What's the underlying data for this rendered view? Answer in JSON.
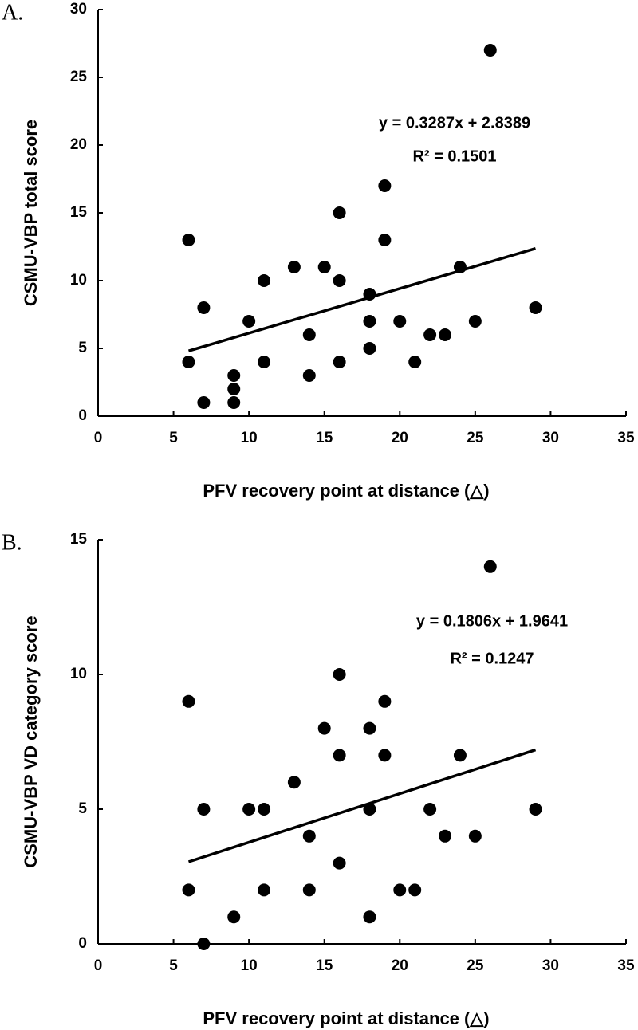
{
  "chart_data": [
    {
      "type": "scatter",
      "panel_label": "A.",
      "xlabel": "PFV  recovery  point  at  distance (△)",
      "ylabel": "CSMU-VBP total score",
      "equation": "y  =  0.3287x  +  2.8389",
      "r_squared": "R²  =  0.1501",
      "trendline": {
        "slope": 0.3287,
        "intercept": 2.8389
      },
      "color": "#000000",
      "x": [
        6,
        6,
        7,
        7,
        9,
        9,
        9,
        10,
        11,
        11,
        13,
        14,
        14,
        15,
        16,
        16,
        16,
        18,
        18,
        18,
        19,
        19,
        20,
        21,
        22,
        23,
        24,
        25,
        26,
        29
      ],
      "values": [
        13,
        4,
        8,
        1,
        3,
        2,
        1,
        7,
        10,
        4,
        11,
        6,
        3,
        11,
        15,
        10,
        4,
        9,
        7,
        5,
        17,
        13,
        7,
        4,
        6,
        6,
        11,
        7,
        27,
        8
      ],
      "xlim": [
        0,
        35
      ],
      "xticks": [
        0,
        5,
        10,
        15,
        20,
        25,
        30,
        35
      ],
      "ylim": [
        0,
        30
      ],
      "yticks": [
        0,
        5,
        10,
        15,
        20,
        25,
        30
      ]
    },
    {
      "type": "scatter",
      "panel_label": "B.",
      "xlabel": "PFV  recovery  point  at  distance (△)",
      "ylabel": "CSMU-VBP VD category score",
      "equation": "y  =  0.1806x  +  1.9641",
      "r_squared": "R²  =  0.1247",
      "trendline": {
        "slope": 0.1806,
        "intercept": 1.9641
      },
      "color": "#000000",
      "x": [
        6,
        6,
        7,
        7,
        9,
        10,
        11,
        11,
        13,
        14,
        14,
        15,
        16,
        16,
        16,
        18,
        18,
        18,
        19,
        19,
        20,
        21,
        22,
        23,
        24,
        25,
        26,
        29
      ],
      "values": [
        9,
        2,
        5,
        0,
        1,
        5,
        5,
        2,
        6,
        4,
        2,
        8,
        10,
        7,
        3,
        8,
        5,
        1,
        9,
        7,
        2,
        2,
        5,
        4,
        7,
        4,
        14,
        5
      ],
      "xlim": [
        0,
        35
      ],
      "xticks": [
        0,
        5,
        10,
        15,
        20,
        25,
        30,
        35
      ],
      "ylim": [
        0,
        15
      ],
      "yticks": [
        0,
        5,
        10,
        15
      ]
    }
  ]
}
